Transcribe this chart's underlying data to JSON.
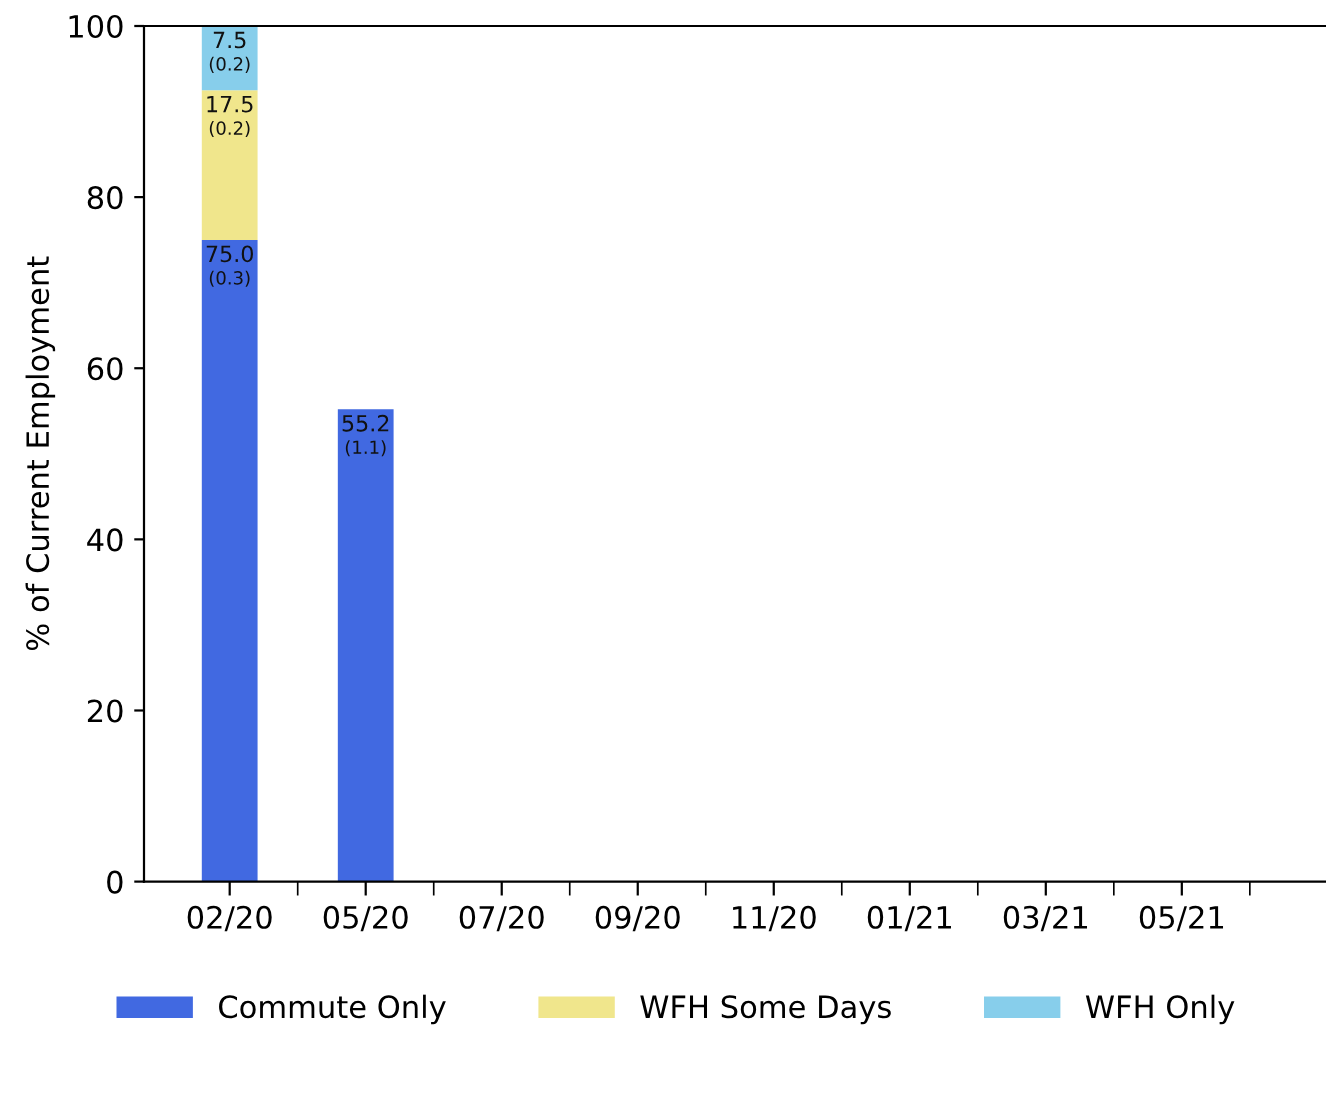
{
  "chart_data": {
    "type": "bar",
    "stacked": true,
    "ylabel": "% of Current Employment",
    "categories": [
      "02/20",
      "05/20",
      "07/20",
      "09/20",
      "11/20",
      "01/21",
      "03/21",
      "05/21"
    ],
    "series": [
      {
        "name": "Commute Only",
        "color": "#4169e1",
        "values": [
          75.0,
          55.2,
          null,
          null,
          null,
          null,
          null,
          null
        ],
        "value_labels": [
          "75.0\n(0.3)",
          "55.2\n(1.1)",
          null,
          null,
          null,
          null,
          null,
          null
        ]
      },
      {
        "name": "WFH Some Days",
        "color": "#f0e68c",
        "values": [
          17.5,
          null,
          null,
          null,
          null,
          null,
          null,
          null
        ],
        "value_labels": [
          "17.5\n(0.2)",
          null,
          null,
          null,
          null,
          null,
          null,
          null
        ]
      },
      {
        "name": "WFH Only",
        "color": "#87ceeb",
        "values": [
          7.5,
          null,
          null,
          null,
          null,
          null,
          null,
          null
        ],
        "value_labels": [
          "7.5\n(0.2)",
          null,
          null,
          null,
          null,
          null,
          null,
          null
        ]
      }
    ],
    "ylim": [
      0,
      100
    ],
    "yticks": [
      0,
      20,
      40,
      60,
      80,
      100
    ],
    "grid": false,
    "legend": "bottom"
  }
}
